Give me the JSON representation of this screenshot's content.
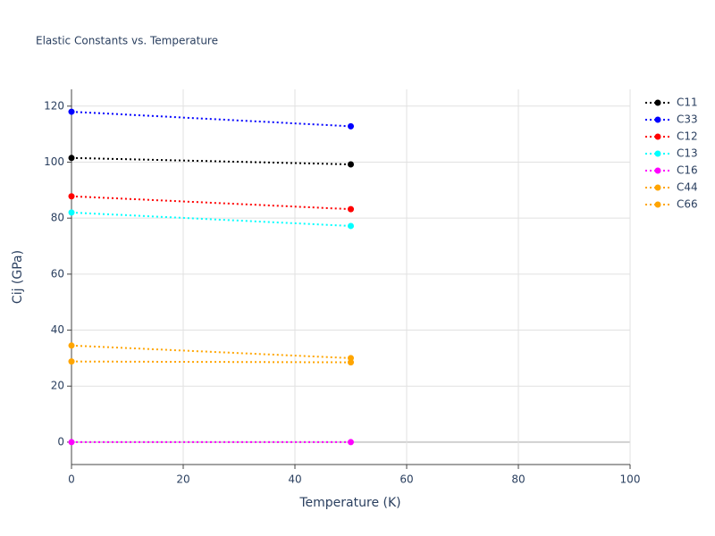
{
  "chart_data": {
    "type": "line",
    "title": "Elastic Constants vs. Temperature",
    "x_label": "Temperature (K)",
    "y_label": "Cij (GPa)",
    "x": [
      0,
      50
    ],
    "series": [
      {
        "name": "C11",
        "color": "#000000",
        "values": [
          101.5,
          99.2
        ]
      },
      {
        "name": "C33",
        "color": "#0000ff",
        "values": [
          118,
          112.8
        ]
      },
      {
        "name": "C12",
        "color": "#ff0000",
        "values": [
          87.8,
          83.2
        ]
      },
      {
        "name": "C13",
        "color": "#00ffff",
        "values": [
          82,
          77.2
        ]
      },
      {
        "name": "C16",
        "color": "#ff00ff",
        "values": [
          0,
          0
        ]
      },
      {
        "name": "C44",
        "color": "#ffa500",
        "values": [
          34.5,
          30.0
        ]
      },
      {
        "name": "C66",
        "color": "#ffa500",
        "values": [
          28.8,
          28.5
        ]
      }
    ],
    "xlim": [
      0,
      100
    ],
    "xticks": [
      0,
      20,
      40,
      60,
      80,
      100
    ],
    "ylim": [
      -8,
      126
    ],
    "yticks": [
      0,
      20,
      40,
      60,
      80,
      100,
      120
    ],
    "grid": true
  }
}
